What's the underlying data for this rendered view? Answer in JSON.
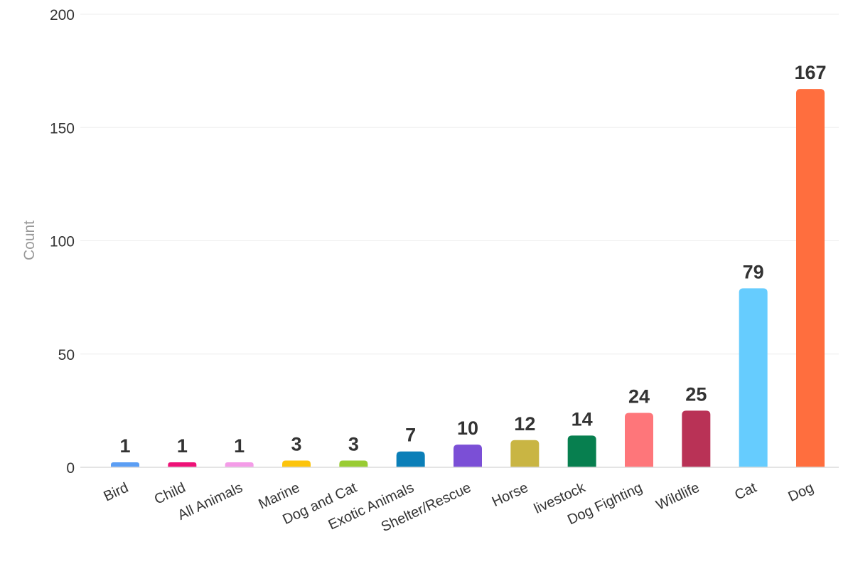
{
  "chart_data": {
    "type": "bar",
    "title": "",
    "xlabel": "",
    "ylabel": "Count",
    "ylim": [
      0,
      200
    ],
    "yticks": [
      0,
      50,
      100,
      150,
      200
    ],
    "grid": true,
    "legend": "none",
    "categories": [
      "Bird",
      "Child",
      "All Animals",
      "Marine",
      "Dog and Cat",
      "Exotic Animals",
      "Shelter/Rescue",
      "Horse",
      "livestock",
      "Dog Fighting",
      "Wildlife",
      "Cat",
      "Dog"
    ],
    "values": [
      1,
      1,
      1,
      3,
      3,
      7,
      10,
      12,
      14,
      24,
      25,
      79,
      167
    ],
    "colors": [
      "#5b9ef4",
      "#ee1177",
      "#f49ce8",
      "#fcc40c",
      "#99cc33",
      "#0b7fb8",
      "#7b4fd6",
      "#c9b543",
      "#077f4f",
      "#fe767a",
      "#b93256",
      "#66ccfe",
      "#ff6e3e"
    ]
  }
}
